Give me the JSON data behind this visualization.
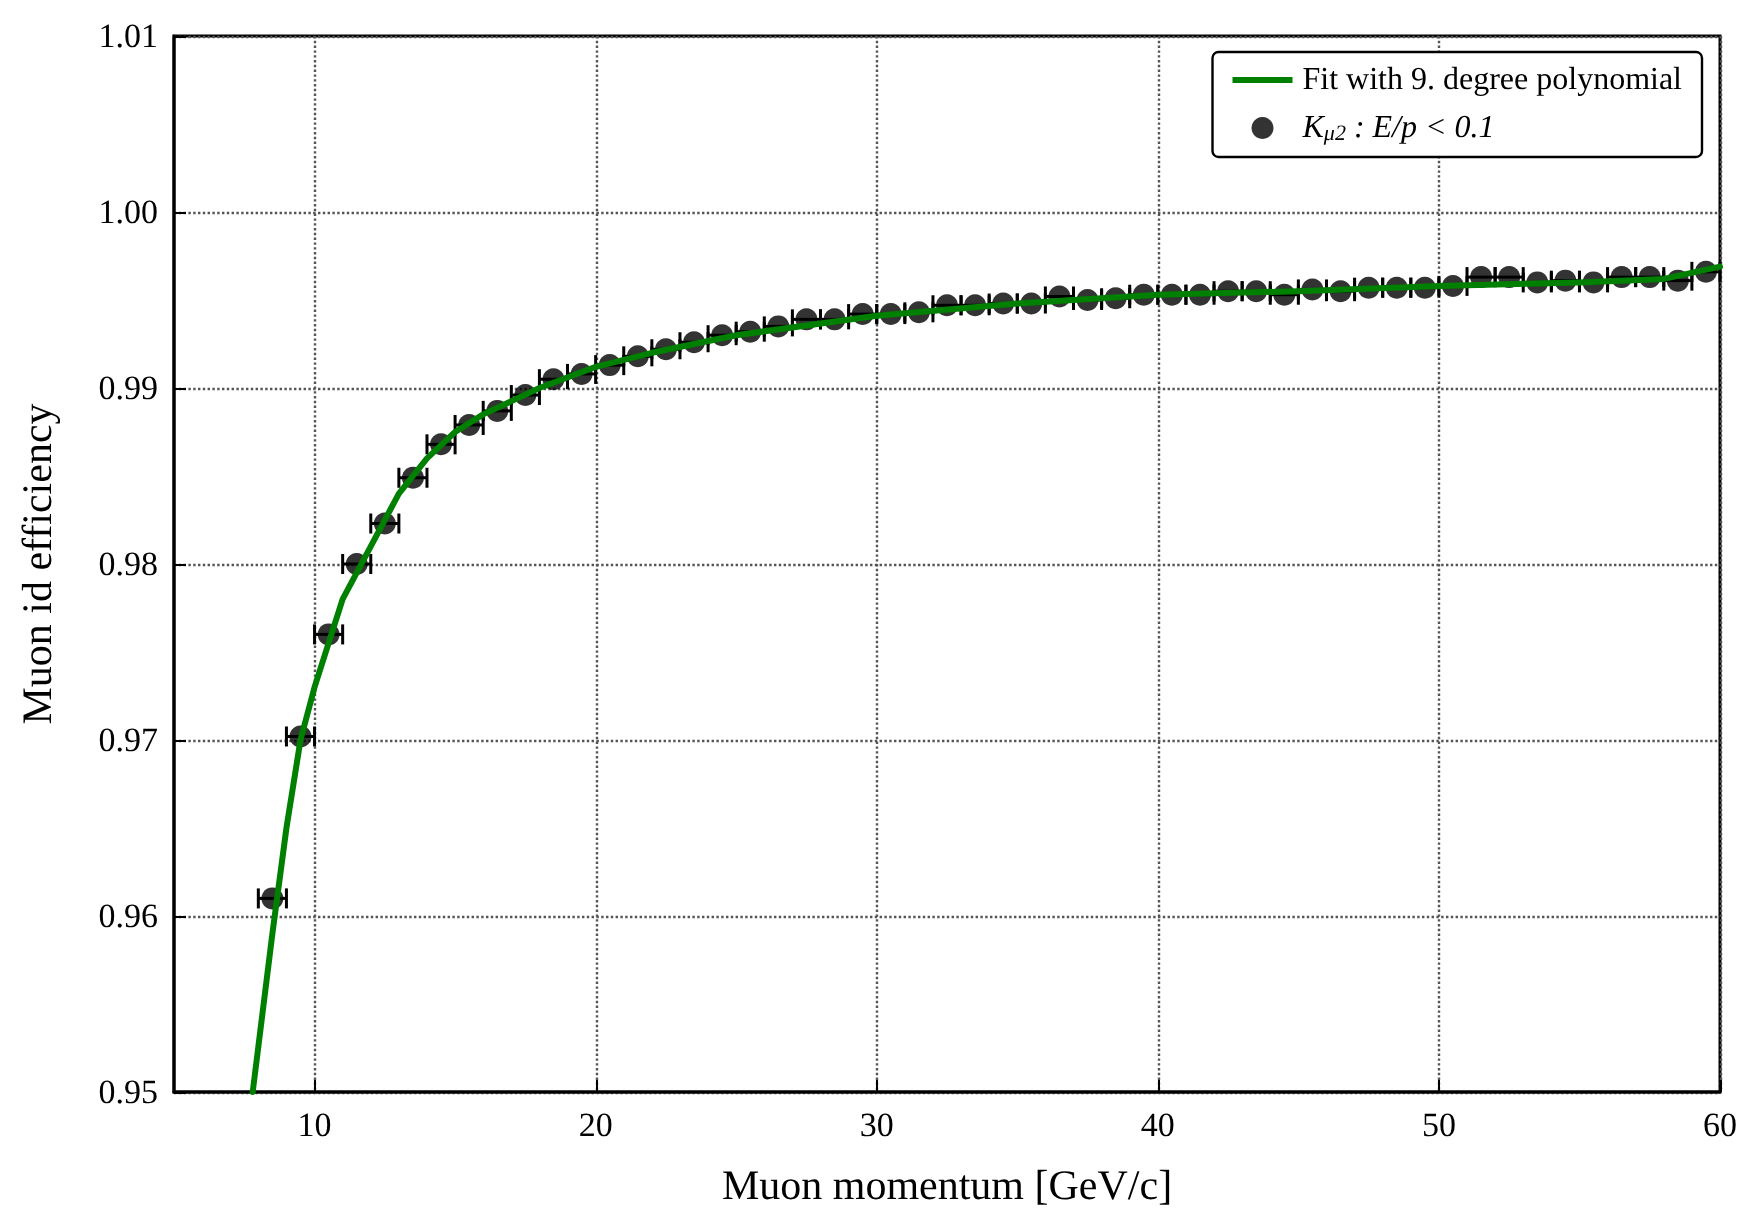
{
  "chart_data": {
    "type": "scatter",
    "xlabel": "Muon momentum [GeV/c]",
    "ylabel": "Muon id efficiency",
    "xlim": [
      5,
      60
    ],
    "xticks": [
      10,
      20,
      30,
      40,
      50,
      60
    ],
    "ylim": [
      0.95,
      1.01
    ],
    "yticks": [
      0.95,
      0.96,
      0.97,
      0.98,
      0.99,
      {
        "value": 1,
        "label": "1.00"
      },
      1.01
    ],
    "grid": true,
    "legend": "top right",
    "series": [
      {
        "name": "Fit with 9. degree polynomial",
        "type": "line",
        "marker": "none",
        "color": "#008000",
        "x": [
          7.8,
          8.5,
          9,
          9.5,
          10,
          11,
          12,
          13,
          14,
          15,
          16,
          18,
          20,
          22,
          25,
          30,
          35,
          40,
          45,
          50,
          55,
          58,
          60
        ],
        "values": [
          0.95,
          0.959,
          0.965,
          0.97,
          0.973,
          0.978,
          0.981,
          0.984,
          0.986,
          0.9875,
          0.9885,
          0.99,
          0.9912,
          0.992,
          0.993,
          0.9941,
          0.9948,
          0.9953,
          0.9955,
          0.9958,
          0.996,
          0.9962,
          0.9969
        ]
      },
      {
        "name": "K$_{μ2}$ : E/p < 0.1",
        "marker": "circle",
        "color": "#000000",
        "x": [
          8.5,
          9.5,
          10.5,
          11.5,
          12.5,
          13.5,
          14.5,
          15.5,
          16.5,
          17.5,
          18.5,
          19.5,
          20.5,
          21.5,
          22.5,
          23.5,
          24.5,
          25.5,
          26.5,
          27.5,
          28.5,
          29.5,
          30.5,
          31.5,
          32.5,
          33.5,
          34.5,
          35.5,
          36.5,
          37.5,
          38.5,
          39.5,
          40.5,
          41.5,
          42.5,
          43.5,
          44.5,
          45.5,
          46.5,
          47.5,
          48.5,
          49.5,
          50.5,
          51.5,
          52.5,
          53.5,
          54.5,
          55.5,
          56.5,
          57.5,
          58.5,
          59.5
        ],
        "values": [
          0.961,
          0.9702,
          0.976,
          0.98,
          0.9823,
          0.9849,
          0.9868,
          0.9879,
          0.9887,
          0.9896,
          0.9905,
          0.9908,
          0.9913,
          0.9918,
          0.9922,
          0.9926,
          0.993,
          0.9932,
          0.9935,
          0.9939,
          0.9939,
          0.9942,
          0.9942,
          0.9943,
          0.9947,
          0.9947,
          0.9948,
          0.9948,
          0.9952,
          0.995,
          0.9951,
          0.9953,
          0.9953,
          0.9953,
          0.9955,
          0.9955,
          0.9953,
          0.9956,
          0.9955,
          0.9957,
          0.9957,
          0.9957,
          0.9958,
          0.9963,
          0.9963,
          0.996,
          0.9961,
          0.996,
          0.9963,
          0.9963,
          0.9961,
          0.9966
        ],
        "xerrors": [
          0.5,
          0.5,
          0.5,
          0.5,
          0.5,
          0.5,
          0.5,
          0.5,
          0.5,
          0.5,
          0.5,
          0.5,
          0.5,
          0.5,
          0.5,
          0.5,
          0.5,
          0.5,
          0.5,
          0.5,
          0.5,
          0.5,
          0.5,
          0.5,
          0.5,
          0.5,
          0.5,
          0.5,
          0.5,
          0.5,
          0.5,
          0.5,
          0.5,
          0.5,
          0.5,
          0.5,
          0.5,
          0.5,
          0.5,
          0.5,
          0.5,
          0.5,
          0.5,
          0.5,
          0.5,
          0.5,
          0.5,
          0.5,
          0.5,
          0.5,
          0.5,
          0.5
        ]
      }
    ]
  }
}
